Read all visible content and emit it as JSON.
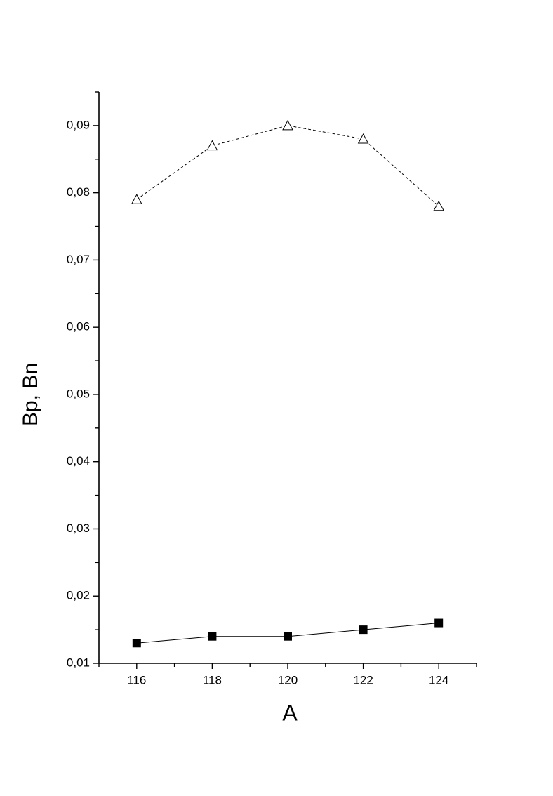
{
  "chart_data": {
    "type": "line",
    "xlabel": "A",
    "ylabel": "Bp, Bn",
    "x": [
      116,
      118,
      120,
      122,
      124
    ],
    "series": [
      {
        "name": "Bn",
        "color": "#000000",
        "marker": "open-triangle",
        "linestyle": "dashed",
        "values": [
          0.079,
          0.087,
          0.09,
          0.088,
          0.078
        ]
      },
      {
        "name": "Bp",
        "color": "#000000",
        "marker": "filled-square",
        "linestyle": "solid",
        "values": [
          0.013,
          0.014,
          0.014,
          0.015,
          0.016
        ]
      }
    ],
    "xlim": [
      115,
      125
    ],
    "xticks": [
      116,
      118,
      120,
      122,
      124
    ],
    "xminorticks": [
      115,
      117,
      119,
      121,
      123,
      125
    ],
    "ylim": [
      0.01,
      0.095
    ],
    "yticks": [
      {
        "value": 0.01,
        "label": "0,01"
      },
      {
        "value": 0.02,
        "label": "0,02"
      },
      {
        "value": 0.03,
        "label": "0,03"
      },
      {
        "value": 0.04,
        "label": "0,04"
      },
      {
        "value": 0.05,
        "label": "0,05"
      },
      {
        "value": 0.06,
        "label": "0,06"
      },
      {
        "value": 0.07,
        "label": "0,07"
      },
      {
        "value": 0.08,
        "label": "0,08"
      },
      {
        "value": 0.09,
        "label": "0,09"
      }
    ],
    "yminorticks": [
      0.015,
      0.025,
      0.035,
      0.045,
      0.055,
      0.065,
      0.075,
      0.085,
      0.095
    ],
    "grid": false
  }
}
